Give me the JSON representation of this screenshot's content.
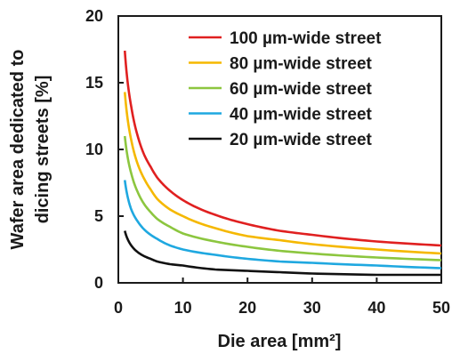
{
  "chart_data": {
    "type": "line",
    "title": "",
    "xlabel": "Die area [mm²]",
    "ylabel_lines": [
      "Wafer area dedicated to",
      "dicing streets [%]"
    ],
    "xlim": [
      0,
      50
    ],
    "ylim": [
      0,
      20
    ],
    "x_ticks": [
      0,
      10,
      20,
      30,
      40,
      50
    ],
    "y_ticks": [
      0,
      5,
      10,
      15,
      20
    ],
    "grid": false,
    "legend_position": "top-right",
    "x": [
      1,
      2,
      3,
      4,
      5,
      6,
      8,
      10,
      15,
      20,
      25,
      30,
      40,
      50
    ],
    "series": [
      {
        "name": "100 µm-wide street",
        "color": "#e02020",
        "values": [
          17.4,
          13.2,
          11.0,
          9.6,
          8.7,
          7.9,
          6.9,
          6.2,
          5.1,
          4.4,
          3.9,
          3.6,
          3.1,
          2.8
        ]
      },
      {
        "name": "80 µm-wide street",
        "color": "#f5b800",
        "values": [
          14.3,
          10.7,
          8.9,
          7.8,
          7.0,
          6.3,
          5.5,
          5.0,
          4.1,
          3.5,
          3.2,
          2.9,
          2.5,
          2.2
        ]
      },
      {
        "name": "60 µm-wide street",
        "color": "#8cc63f",
        "values": [
          11.0,
          8.2,
          6.8,
          5.9,
          5.3,
          4.8,
          4.2,
          3.7,
          3.1,
          2.7,
          2.4,
          2.2,
          1.9,
          1.7
        ]
      },
      {
        "name": "40 µm-wide street",
        "color": "#1fa8e0",
        "values": [
          7.7,
          5.5,
          4.6,
          4.0,
          3.6,
          3.3,
          2.8,
          2.5,
          2.1,
          1.8,
          1.6,
          1.5,
          1.3,
          1.1
        ]
      },
      {
        "name": "20 µm-wide street",
        "color": "#111111",
        "values": [
          3.9,
          2.8,
          2.3,
          2.0,
          1.8,
          1.6,
          1.4,
          1.3,
          1.0,
          0.9,
          0.8,
          0.7,
          0.6,
          0.6
        ]
      }
    ]
  }
}
